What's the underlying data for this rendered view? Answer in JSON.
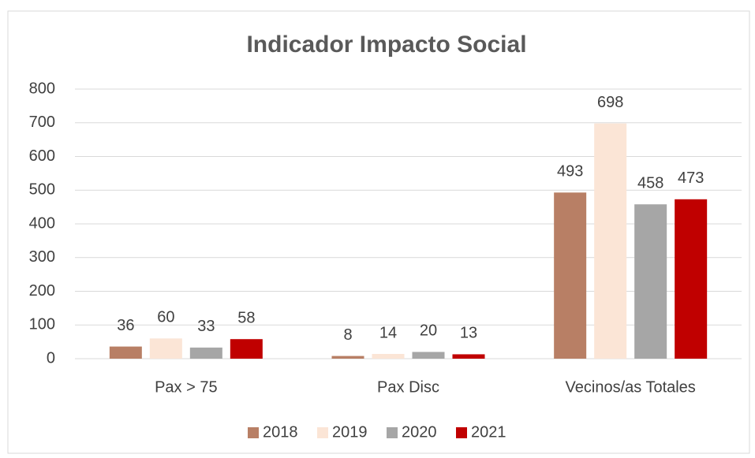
{
  "chart_data": {
    "type": "bar",
    "title": "Indicador Impacto Social",
    "categories": [
      "Pax > 75",
      "Pax Disc",
      "Vecinos/as Totales"
    ],
    "series": [
      {
        "name": "2018",
        "color": "#b87f65",
        "values": [
          36,
          8,
          493
        ]
      },
      {
        "name": "2019",
        "color": "#fbe5d6",
        "values": [
          60,
          14,
          698
        ]
      },
      {
        "name": "2020",
        "color": "#a6a6a6",
        "values": [
          33,
          20,
          458
        ]
      },
      {
        "name": "2021",
        "color": "#c00000",
        "values": [
          58,
          13,
          473
        ]
      }
    ],
    "ylim": [
      0,
      800
    ],
    "yticks": [
      0,
      100,
      200,
      300,
      400,
      500,
      600,
      700,
      800
    ],
    "grid": true,
    "legend": "bottom"
  }
}
